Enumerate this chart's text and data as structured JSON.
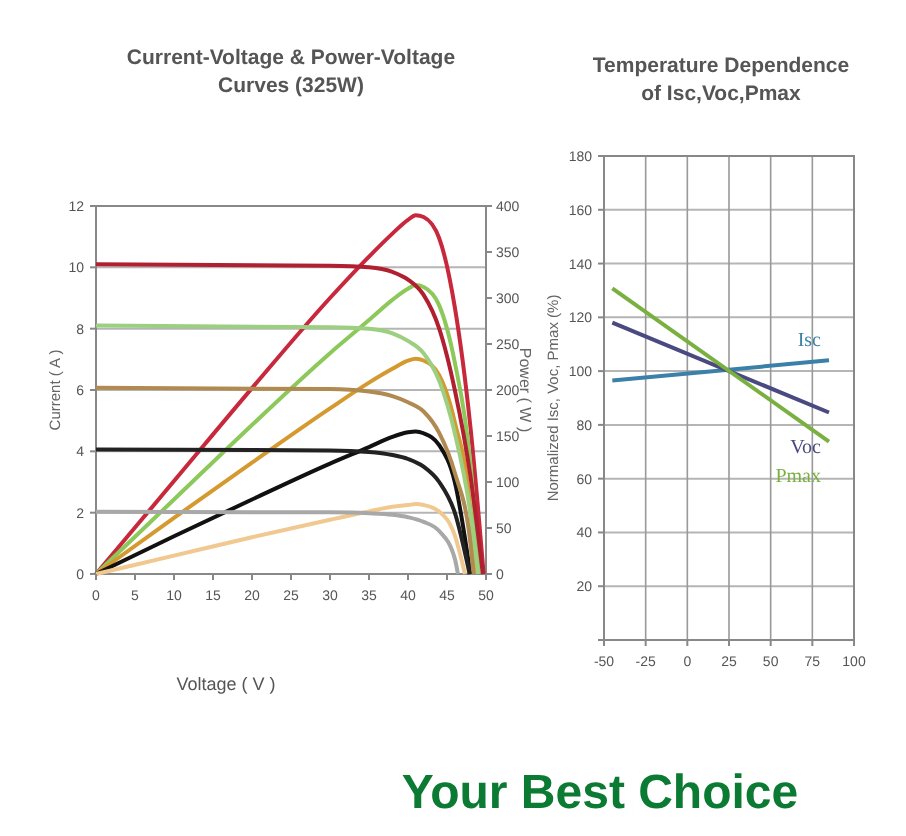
{
  "chart_data": [
    {
      "type": "line",
      "title": "Current-Voltage & Power-Voltage Curves (325W)",
      "xlabel": "Voltage ( V )",
      "ylabel": "Current ( A )",
      "y2label": "Power ( W )",
      "xlim": [
        0,
        50
      ],
      "xticks": [
        0,
        5,
        10,
        15,
        20,
        25,
        30,
        35,
        40,
        45,
        50
      ],
      "ylim": [
        0,
        12
      ],
      "yticks": [
        0,
        2,
        4,
        6,
        8,
        10,
        12
      ],
      "y2lim": [
        0,
        400
      ],
      "y2ticks": [
        0,
        50,
        100,
        150,
        200,
        250,
        300,
        350,
        400
      ],
      "grid": "y",
      "marker": "none",
      "line_style": "solid",
      "series": [
        {
          "color": "#c8283c",
          "axis": "y2",
          "x": [
            0,
            10,
            20,
            30,
            35,
            38,
            40,
            41,
            42,
            44,
            46,
            48,
            49.7
          ],
          "values": [
            0,
            101,
            202,
            300,
            345,
            370,
            385,
            390,
            388,
            365,
            290,
            160,
            0
          ]
        },
        {
          "color": "#8cc85a",
          "axis": "y2",
          "x": [
            0,
            10,
            20,
            30,
            35,
            38,
            40,
            41,
            42,
            44,
            46,
            48,
            49.1
          ],
          "values": [
            0,
            81,
            162,
            240,
            276,
            298,
            310,
            314,
            312,
            292,
            230,
            120,
            0
          ]
        },
        {
          "color": "#d49a30",
          "axis": "y2",
          "x": [
            0,
            10,
            20,
            30,
            35,
            38,
            40,
            41,
            42,
            44,
            46,
            48,
            48.6
          ],
          "values": [
            0,
            61,
            121,
            180,
            208,
            223,
            232,
            234,
            232,
            216,
            165,
            70,
            0
          ]
        },
        {
          "color": "#111111",
          "axis": "y2",
          "x": [
            0,
            10,
            20,
            30,
            35,
            38,
            40,
            41,
            42,
            44,
            46,
            48
          ],
          "values": [
            0,
            41,
            81,
            120,
            138,
            149,
            154,
            155,
            153,
            140,
            100,
            0
          ]
        },
        {
          "color": "#f0c890",
          "axis": "y2",
          "x": [
            0,
            10,
            20,
            30,
            35,
            38,
            40,
            41,
            42,
            44,
            46,
            47.3
          ],
          "values": [
            0,
            20,
            40,
            59,
            68,
            73,
            75,
            76,
            75,
            68,
            42,
            0
          ]
        },
        {
          "color": "#b02030",
          "x": [
            0,
            30,
            35,
            38,
            40,
            42,
            44,
            46,
            48,
            49.6
          ],
          "values": [
            10.1,
            10.05,
            10,
            9.85,
            9.6,
            9.1,
            8,
            6,
            3.2,
            0
          ]
        },
        {
          "color": "#9ccf80",
          "x": [
            0,
            30,
            35,
            38,
            40,
            42,
            44,
            46,
            48,
            49
          ],
          "values": [
            8.1,
            8.05,
            8,
            7.85,
            7.6,
            7.2,
            6.3,
            4.6,
            2,
            0
          ]
        },
        {
          "color": "#b08a50",
          "x": [
            0,
            30,
            35,
            38,
            40,
            42,
            44,
            46,
            48,
            48.4
          ],
          "values": [
            6.07,
            6.03,
            5.95,
            5.8,
            5.6,
            5.3,
            4.6,
            3.3,
            1,
            0
          ]
        },
        {
          "color": "#222222",
          "x": [
            0,
            30,
            35,
            38,
            40,
            42,
            44,
            46,
            47.9
          ],
          "values": [
            4.06,
            4.03,
            3.98,
            3.88,
            3.75,
            3.5,
            3,
            2,
            0
          ]
        },
        {
          "color": "#a8a8a8",
          "x": [
            0,
            30,
            35,
            38,
            40,
            42,
            44,
            46,
            46.4
          ],
          "values": [
            2.03,
            2.01,
            1.98,
            1.93,
            1.85,
            1.7,
            1.4,
            0.5,
            0
          ]
        }
      ]
    },
    {
      "type": "line",
      "title": "Temperature Dependence of Isc,Voc,Pmax",
      "ylabel": "Normalized Isc, Voc, Pmax (%)",
      "xlim": [
        -50,
        100
      ],
      "xticks": [
        -50,
        -25,
        0,
        25,
        50,
        75,
        100
      ],
      "ylim": [
        0,
        180
      ],
      "yticks": [
        {
          "value": 0,
          "label": null
        },
        20,
        40,
        60,
        80,
        100,
        120,
        140,
        160,
        180
      ],
      "grid": true,
      "marker": "none",
      "line_style": "solid",
      "annotations": [
        "Your Best Choice"
      ],
      "series": [
        {
          "name": "Isc",
          "color": "#3a80a8",
          "x": [
            -45,
            85
          ],
          "values": [
            96.5,
            104
          ]
        },
        {
          "name": "Voc",
          "color": "#4a4a80",
          "x": [
            -45,
            85
          ],
          "values": [
            118,
            84.6
          ]
        },
        {
          "name": "Pmax",
          "color": "#7ab040",
          "x": [
            -45,
            85
          ],
          "values": [
            130.8,
            73.8
          ]
        }
      ]
    }
  ]
}
